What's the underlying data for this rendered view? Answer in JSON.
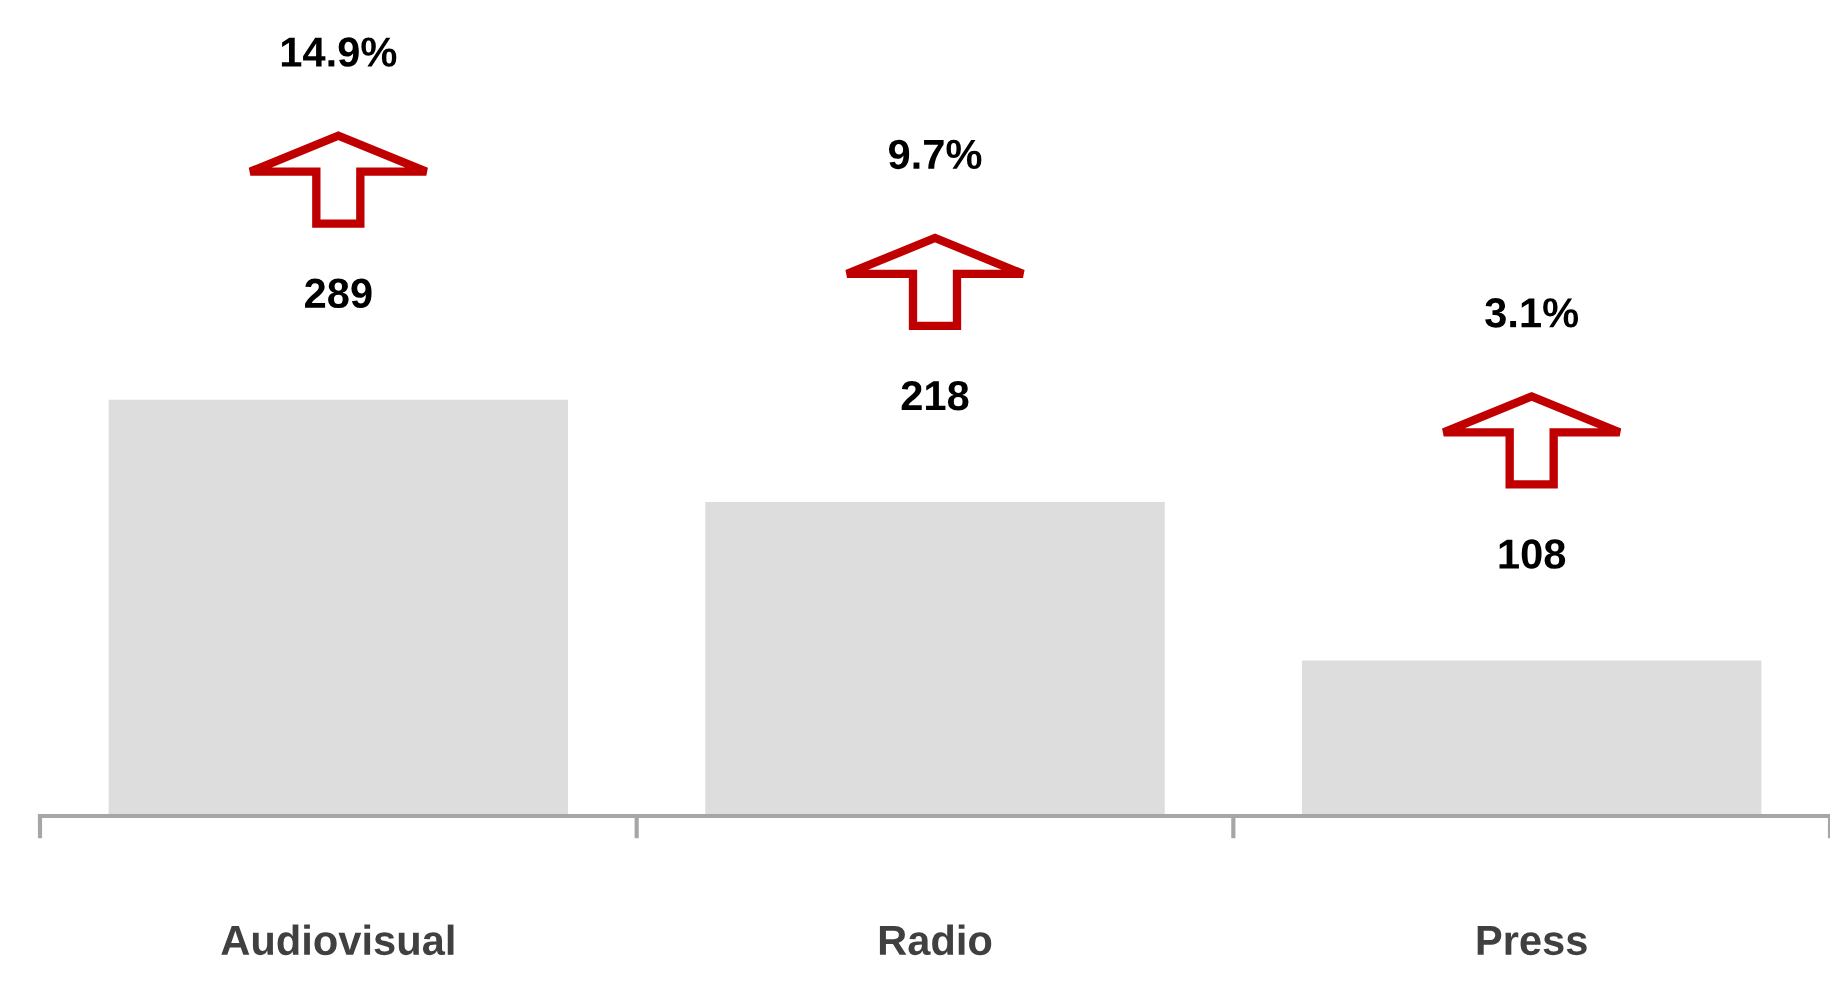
{
  "chart_data": {
    "type": "bar",
    "categories": [
      "Audiovisual",
      "Radio",
      "Press"
    ],
    "values": [
      289,
      218,
      108
    ],
    "color": "#dddddd",
    "data_labels": true,
    "annotations": [
      "14.9%",
      "9.7%",
      "3.1%"
    ],
    "grid": false,
    "legend": false
  }
}
